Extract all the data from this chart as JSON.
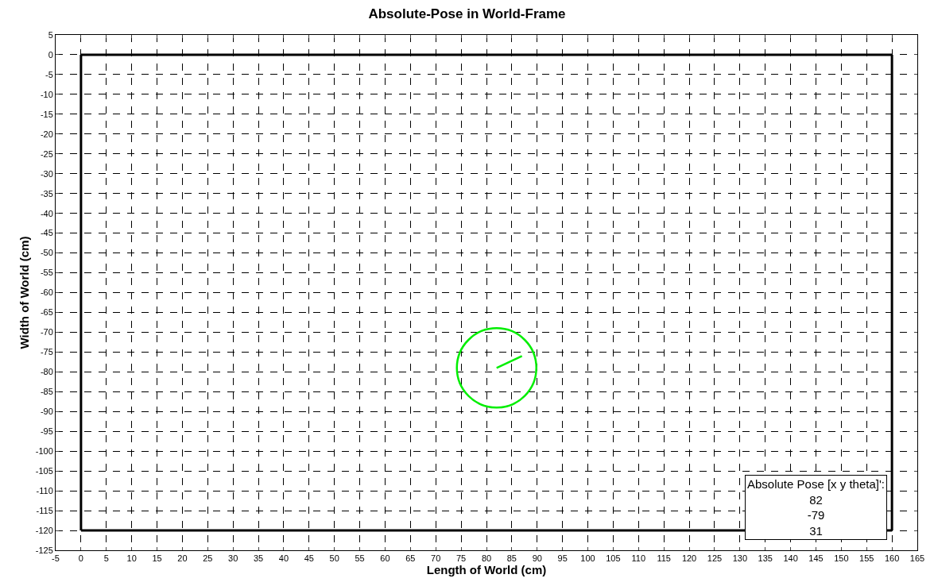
{
  "chart_data": {
    "type": "line",
    "title": "Absolute-Pose in World-Frame",
    "xlabel": "Length of World (cm)",
    "ylabel": "Width of World (cm)",
    "series": [
      {
        "color": "#000000",
        "x": [
          0,
          160
        ],
        "values": [
          0,
          0
        ]
      },
      {
        "color": "#000000",
        "x": [
          0,
          160
        ],
        "values": [
          -120,
          -120
        ]
      },
      {
        "color": "#000000",
        "x": [
          0,
          0
        ],
        "values": [
          0,
          -120
        ]
      },
      {
        "color": "#000000",
        "x": [
          160,
          160
        ],
        "values": [
          0,
          -120
        ]
      },
      {
        "type": "scatter",
        "marker": "circle",
        "color": "#00ee00",
        "x": [
          82
        ],
        "values": [
          -79
        ]
      },
      {
        "color": "#00ee00",
        "x": [
          82,
          87
        ],
        "values": [
          -79,
          -76
        ]
      }
    ],
    "xlim": [
      -5,
      165
    ],
    "xticks": [
      -5,
      0,
      5,
      10,
      15,
      20,
      25,
      30,
      35,
      40,
      45,
      50,
      55,
      60,
      65,
      70,
      75,
      80,
      85,
      90,
      95,
      100,
      105,
      110,
      115,
      120,
      125,
      130,
      135,
      140,
      145,
      150,
      155,
      160,
      165
    ],
    "ylim": [
      -125,
      5
    ],
    "yticks": [
      -125,
      -120,
      -115,
      -110,
      -105,
      -100,
      -95,
      -90,
      -85,
      -80,
      -75,
      -70,
      -65,
      -60,
      -55,
      -50,
      -45,
      -40,
      -35,
      -30,
      -25,
      -20,
      -15,
      -10,
      -5,
      0,
      5
    ],
    "grid": true,
    "line_style": "solid",
    "annotations": [
      "Absolute Pose [x y theta]':\n82\n-79\n31"
    ]
  }
}
